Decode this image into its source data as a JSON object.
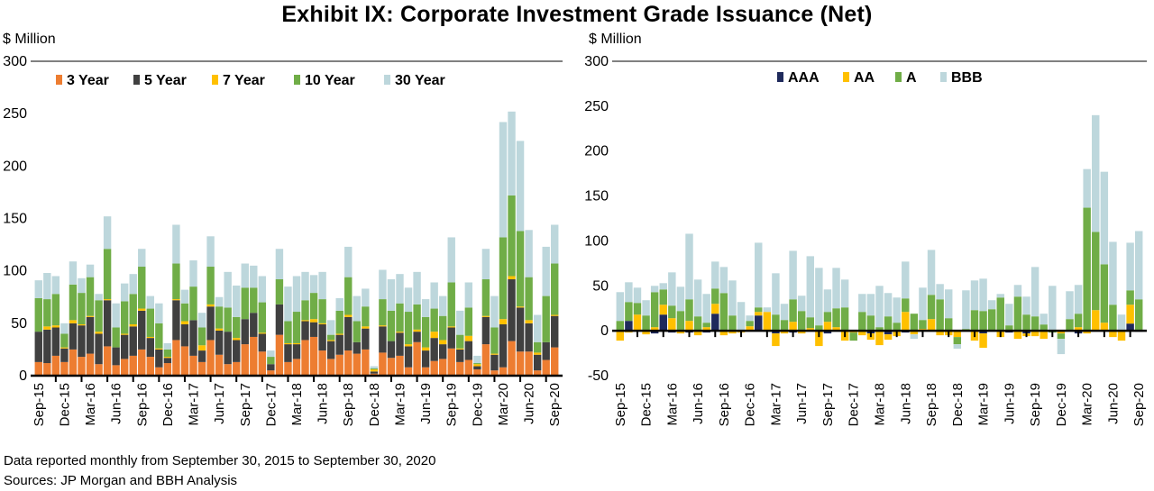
{
  "title": "Exhibit IX: Corporate Investment Grade Issuance (Net)",
  "footnote": {
    "line1": "Data reported monthly from September 30, 2015 to September 30, 2020",
    "line2": "Sources: JP Morgan and BBH Analysis"
  },
  "chart_data": [
    {
      "type": "bar",
      "stacked": true,
      "ylabel": "$ Million",
      "ylim": [
        0,
        300
      ],
      "yticks": [
        0,
        50,
        100,
        150,
        200,
        250,
        300
      ],
      "legend_position": "top-left",
      "xtick_labels": [
        "Sep-15",
        "Dec-15",
        "Mar-16",
        "Jun-16",
        "Sep-16",
        "Dec-16",
        "Mar-17",
        "Jun-17",
        "Sep-17",
        "Dec-17",
        "Mar-18",
        "Jun-18",
        "Sep-18",
        "Dec-18",
        "Mar-19",
        "Jun-19",
        "Sep-19",
        "Dec-19",
        "Mar-20",
        "Jun-20",
        "Sep-20"
      ],
      "series": [
        {
          "name": "3 Year",
          "color": "#ED7D31",
          "values": [
            13,
            12,
            19,
            13,
            25,
            18,
            21,
            11,
            28,
            10,
            16,
            19,
            25,
            18,
            8,
            12,
            34,
            28,
            19,
            13,
            34,
            20,
            11,
            13,
            30,
            37,
            23,
            5,
            39,
            13,
            16,
            34,
            37,
            24,
            16,
            20,
            24,
            21,
            25,
            2,
            22,
            17,
            19,
            8,
            32,
            8,
            14,
            16,
            26,
            13,
            15,
            6,
            30,
            5,
            8,
            33,
            23,
            23,
            5,
            15,
            27
          ]
        },
        {
          "name": "5 Year",
          "color": "#404040",
          "values": [
            29,
            32,
            27,
            13,
            25,
            30,
            35,
            29,
            44,
            17,
            23,
            28,
            37,
            18,
            17,
            5,
            38,
            21,
            34,
            11,
            32,
            23,
            31,
            21,
            24,
            23,
            17,
            6,
            29,
            17,
            14,
            18,
            14,
            25,
            17,
            19,
            32,
            11,
            20,
            2,
            25,
            16,
            22,
            20,
            10,
            16,
            22,
            14,
            20,
            12,
            18,
            3,
            26,
            15,
            41,
            59,
            42,
            27,
            15,
            17,
            30
          ]
        },
        {
          "name": "7 Year",
          "color": "#FFC000",
          "values": [
            0,
            3,
            2,
            1,
            3,
            1,
            1,
            2,
            1,
            0,
            1,
            2,
            2,
            1,
            1,
            1,
            1,
            3,
            0,
            5,
            2,
            2,
            0,
            2,
            0,
            0,
            1,
            0,
            0,
            1,
            1,
            1,
            3,
            1,
            1,
            1,
            2,
            0,
            2,
            2,
            1,
            0,
            1,
            2,
            2,
            3,
            6,
            4,
            1,
            1,
            5,
            2,
            1,
            1,
            5,
            3,
            1,
            3,
            2,
            0,
            1
          ]
        },
        {
          "name": "10 Year",
          "color": "#70AD47",
          "values": [
            32,
            26,
            30,
            13,
            34,
            30,
            37,
            30,
            48,
            19,
            31,
            29,
            40,
            27,
            24,
            7,
            34,
            17,
            32,
            17,
            36,
            21,
            23,
            20,
            30,
            24,
            29,
            7,
            24,
            21,
            30,
            19,
            25,
            23,
            5,
            22,
            36,
            20,
            19,
            1,
            25,
            29,
            27,
            31,
            24,
            29,
            22,
            23,
            42,
            13,
            27,
            1,
            35,
            25,
            78,
            77,
            72,
            41,
            10,
            44,
            49
          ]
        },
        {
          "name": "30 Year",
          "color": "#BDD7DC",
          "values": [
            17,
            25,
            17,
            10,
            22,
            14,
            12,
            6,
            31,
            23,
            17,
            19,
            17,
            12,
            19,
            6,
            37,
            13,
            25,
            14,
            29,
            9,
            34,
            30,
            23,
            21,
            25,
            6,
            29,
            33,
            34,
            27,
            17,
            26,
            14,
            12,
            29,
            24,
            17,
            2,
            28,
            30,
            28,
            23,
            31,
            17,
            25,
            19,
            43,
            23,
            24,
            7,
            29,
            30,
            110,
            80,
            86,
            45,
            26,
            47,
            37
          ]
        }
      ]
    },
    {
      "type": "bar",
      "stacked": true,
      "ylabel": "$ Million",
      "ylim": [
        -50,
        300
      ],
      "yticks": [
        -50,
        0,
        50,
        100,
        150,
        200,
        250,
        300
      ],
      "legend_position": "top-center",
      "xtick_labels": [
        "Sep-15",
        "Dec-15",
        "Mar-16",
        "Jun-16",
        "Sep-16",
        "Dec-16",
        "Mar-17",
        "Jun-17",
        "Sep-17",
        "Dec-17",
        "Mar-18",
        "Jun-18",
        "Sep-18",
        "Dec-18",
        "Mar-19",
        "Jun-19",
        "Sep-19",
        "Dec-19",
        "Mar-20",
        "Jun-20",
        "Sep-20"
      ],
      "series": [
        {
          "name": "AAA",
          "color": "#1F2A5C",
          "values": [
            0,
            11,
            0,
            0,
            -3,
            18,
            -2,
            0,
            -2,
            0,
            -2,
            19,
            0,
            0,
            0,
            0,
            17,
            1,
            -3,
            0,
            -2,
            0,
            0,
            0,
            -3,
            0,
            0,
            0,
            0,
            -3,
            0,
            -4,
            0,
            -2,
            0,
            0,
            0,
            0,
            0,
            0,
            0,
            0,
            -3,
            0,
            0,
            -2,
            0,
            -3,
            0,
            0,
            0,
            0,
            0,
            -3,
            0,
            0,
            0,
            0,
            0,
            8,
            -1
          ]
        },
        {
          "name": "AA",
          "color": "#FFC000",
          "values": [
            -11,
            -2,
            18,
            -4,
            4,
            11,
            14,
            -3,
            11,
            -5,
            4,
            11,
            -5,
            -3,
            -2,
            5,
            4,
            20,
            -14,
            -3,
            10,
            -3,
            3,
            -17,
            10,
            4,
            -11,
            -2,
            -5,
            -7,
            -16,
            -6,
            -6,
            21,
            -4,
            2,
            13,
            -5,
            -5,
            -7,
            0,
            -11,
            -16,
            0,
            -7,
            0,
            -9,
            -3,
            -6,
            -9,
            0,
            -3,
            0,
            4,
            -3,
            23,
            9,
            -7,
            -11,
            21,
            0
          ]
        },
        {
          "name": "A",
          "color": "#70AD47",
          "values": [
            11,
            21,
            13,
            17,
            39,
            17,
            14,
            22,
            24,
            16,
            5,
            17,
            42,
            17,
            0,
            6,
            5,
            -1,
            18,
            12,
            25,
            22,
            12,
            6,
            11,
            21,
            26,
            -9,
            21,
            17,
            4,
            16,
            9,
            15,
            19,
            10,
            27,
            35,
            14,
            -8,
            2,
            23,
            22,
            24,
            37,
            6,
            38,
            18,
            16,
            7,
            -2,
            -6,
            13,
            15,
            137,
            87,
            65,
            29,
            0,
            16,
            35
          ]
        },
        {
          "name": "BBB",
          "color": "#BDD7DC",
          "values": [
            32,
            22,
            17,
            17,
            7,
            7,
            37,
            27,
            73,
            41,
            32,
            30,
            29,
            39,
            32,
            6,
            72,
            5,
            46,
            18,
            54,
            17,
            68,
            64,
            25,
            45,
            31,
            0,
            20,
            24,
            46,
            26,
            28,
            41,
            -5,
            36,
            50,
            17,
            32,
            -5,
            43,
            33,
            36,
            10,
            4,
            24,
            13,
            20,
            55,
            12,
            50,
            -17,
            31,
            32,
            43,
            130,
            103,
            70,
            18,
            53,
            76
          ]
        }
      ]
    }
  ]
}
